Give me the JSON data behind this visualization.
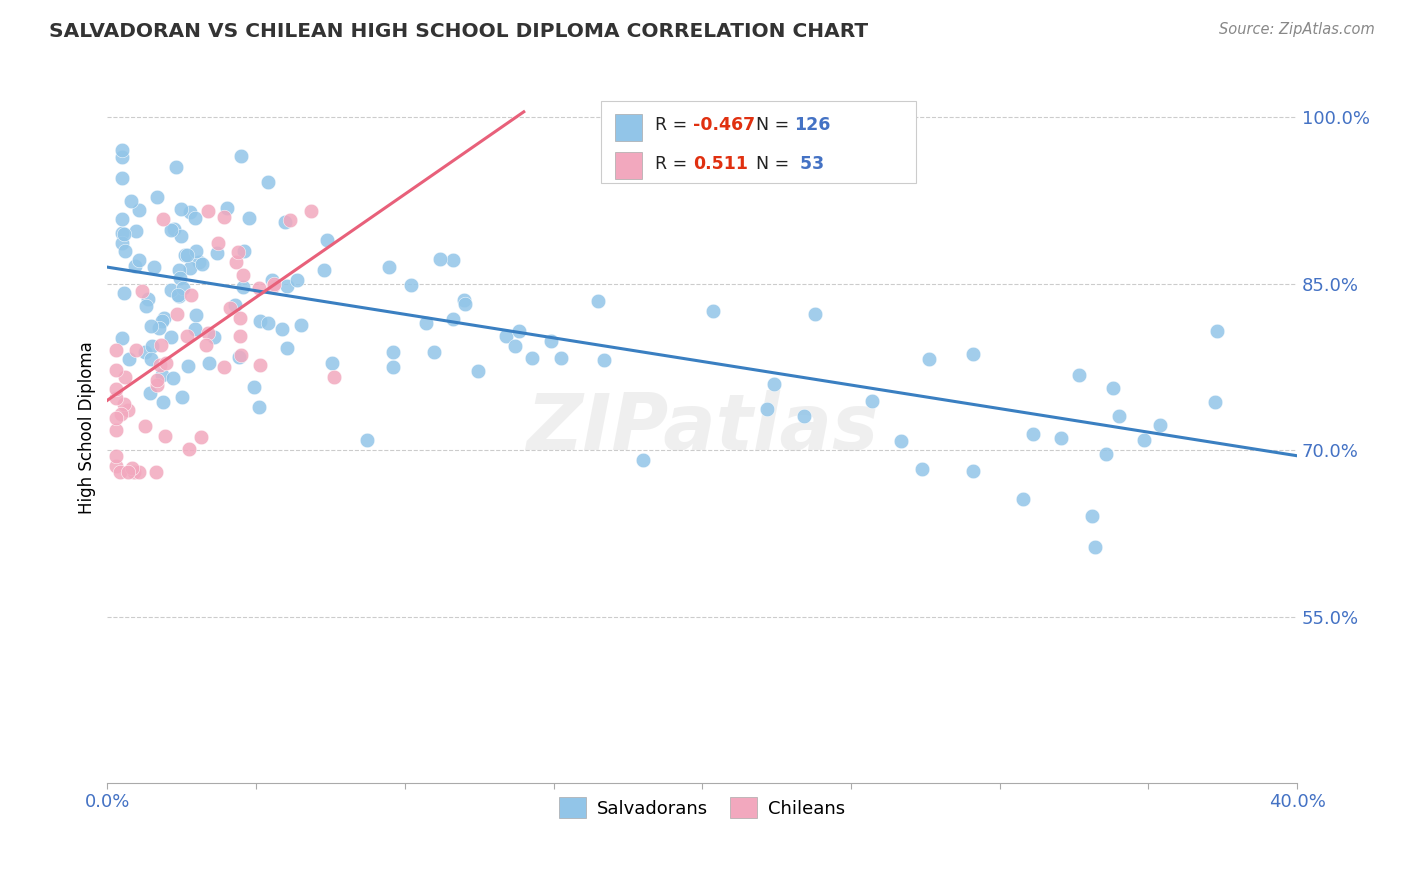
{
  "title": "SALVADORAN VS CHILEAN HIGH SCHOOL DIPLOMA CORRELATION CHART",
  "source": "Source: ZipAtlas.com",
  "ylabel": "High School Diploma",
  "xlim": [
    0.0,
    0.4
  ],
  "ylim": [
    0.4,
    1.04
  ],
  "yticks": [
    0.55,
    0.7,
    0.85,
    1.0
  ],
  "ytick_labels": [
    "55.0%",
    "70.0%",
    "85.0%",
    "100.0%"
  ],
  "xtick_positions": [
    0.0,
    0.05,
    0.1,
    0.15,
    0.2,
    0.25,
    0.3,
    0.35,
    0.4
  ],
  "xtick_labels": [
    "0.0%",
    "",
    "",
    "",
    "",
    "",
    "",
    "",
    "40.0%"
  ],
  "blue_color": "#92C5E8",
  "pink_color": "#F2A8BE",
  "blue_line_color": "#3A7FC1",
  "pink_line_color": "#E8607A",
  "blue_trend_x0": 0.0,
  "blue_trend_y0": 0.865,
  "blue_trend_x1": 0.4,
  "blue_trend_y1": 0.695,
  "pink_trend_x0": 0.0,
  "pink_trend_y0": 0.745,
  "pink_trend_x1": 0.14,
  "pink_trend_y1": 1.005,
  "watermark": "ZIPatlas",
  "legend_label_blue": "Salvadorans",
  "legend_label_pink": "Chileans",
  "blue_R": "-0.467",
  "blue_N": "126",
  "pink_R": "0.511",
  "pink_N": "53"
}
